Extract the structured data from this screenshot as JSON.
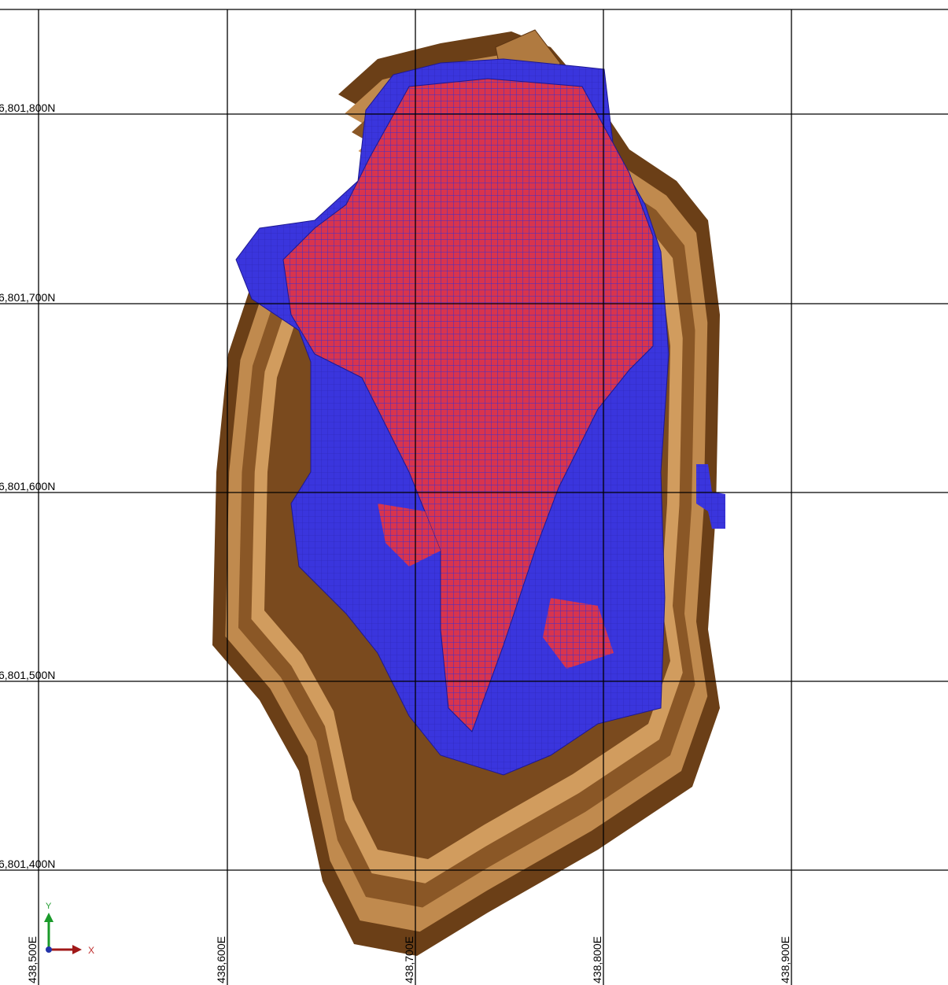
{
  "grid_labels": {
    "northings": [
      "6,801,800N",
      "6,801,700N",
      "6,801,600N",
      "6,801,500N",
      "6,801,400N"
    ],
    "eastings": [
      "438,500E",
      "438,600E",
      "438,700E",
      "438,800E",
      "438,900E"
    ]
  },
  "axis_indicator": {
    "y": "Y",
    "x": "X"
  }
}
